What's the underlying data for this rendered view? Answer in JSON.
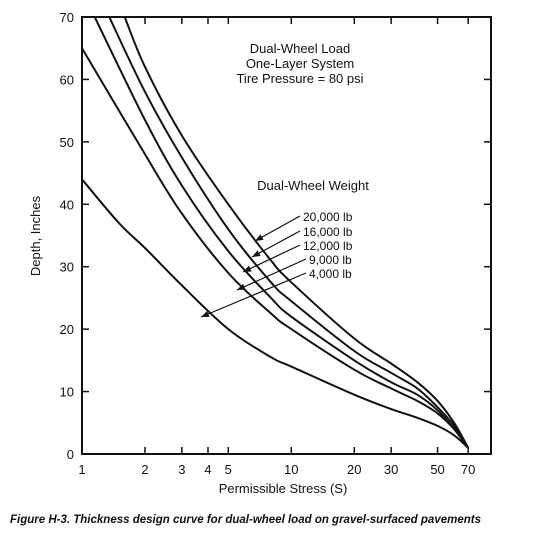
{
  "chart_data": {
    "type": "line",
    "title_lines": [
      "Dual-Wheel Load",
      "One-Layer System",
      "Tire Pressure = 80 psi"
    ],
    "legend_title": "Dual-Wheel Weight",
    "xlabel": "Permissible Stress (S)",
    "ylabel": "Depth, Inches",
    "x_scale": "log",
    "xlim": [
      1,
      90
    ],
    "ylim": [
      0,
      70
    ],
    "x_ticks": [
      1,
      2,
      3,
      4,
      5,
      10,
      20,
      30,
      50,
      70
    ],
    "x_tick_labels": [
      "1",
      "2",
      "3",
      "4",
      "5",
      "10",
      "20",
      "30",
      "50",
      "70"
    ],
    "y_ticks": [
      0,
      10,
      20,
      30,
      40,
      50,
      60,
      70
    ],
    "y_tick_labels": [
      "0",
      "10",
      "20",
      "30",
      "40",
      "50",
      "60",
      "70"
    ],
    "grid": false,
    "series": [
      {
        "name": "20,000 lb",
        "points": [
          [
            1.6,
            70
          ],
          [
            2,
            62
          ],
          [
            3,
            51
          ],
          [
            5,
            40
          ],
          [
            8,
            31
          ],
          [
            10,
            27.5
          ],
          [
            20,
            18.5
          ],
          [
            30,
            14.5
          ],
          [
            40,
            11.5
          ],
          [
            50,
            8.5
          ],
          [
            60,
            5
          ],
          [
            70,
            1
          ]
        ]
      },
      {
        "name": "16,000 lb",
        "points": [
          [
            1.35,
            70
          ],
          [
            2,
            58
          ],
          [
            3,
            47.5
          ],
          [
            5,
            36
          ],
          [
            8,
            27.5
          ],
          [
            10,
            24.5
          ],
          [
            20,
            16.5
          ],
          [
            30,
            13
          ],
          [
            40,
            10.5
          ],
          [
            50,
            7.5
          ],
          [
            60,
            4.5
          ],
          [
            70,
            1
          ]
        ]
      },
      {
        "name": "12,000 lb",
        "points": [
          [
            1.15,
            70
          ],
          [
            2,
            53.5
          ],
          [
            3,
            43
          ],
          [
            5,
            32.5
          ],
          [
            8,
            25
          ],
          [
            10,
            22
          ],
          [
            20,
            15
          ],
          [
            30,
            11.5
          ],
          [
            40,
            9.5
          ],
          [
            50,
            7
          ],
          [
            60,
            4
          ],
          [
            70,
            1
          ]
        ]
      },
      {
        "name": "9,000 lb",
        "points": [
          [
            1,
            65
          ],
          [
            2,
            48
          ],
          [
            3,
            38.5
          ],
          [
            5,
            29
          ],
          [
            8,
            22.5
          ],
          [
            10,
            20
          ],
          [
            20,
            13.5
          ],
          [
            30,
            10.5
          ],
          [
            40,
            8.5
          ],
          [
            50,
            6.5
          ],
          [
            60,
            4
          ],
          [
            70,
            1
          ]
        ]
      },
      {
        "name": "4,000 lb",
        "points": [
          [
            1,
            44
          ],
          [
            1.5,
            37
          ],
          [
            2,
            33
          ],
          [
            3,
            27
          ],
          [
            5,
            20
          ],
          [
            8,
            15.5
          ],
          [
            10,
            14
          ],
          [
            20,
            9.5
          ],
          [
            30,
            7.2
          ],
          [
            40,
            5.8
          ],
          [
            50,
            4.5
          ],
          [
            60,
            3
          ],
          [
            70,
            1
          ]
        ]
      }
    ],
    "caption": "Figure H-3.  Thickness design curve for dual-wheel load on gravel-surfaced pavements"
  }
}
